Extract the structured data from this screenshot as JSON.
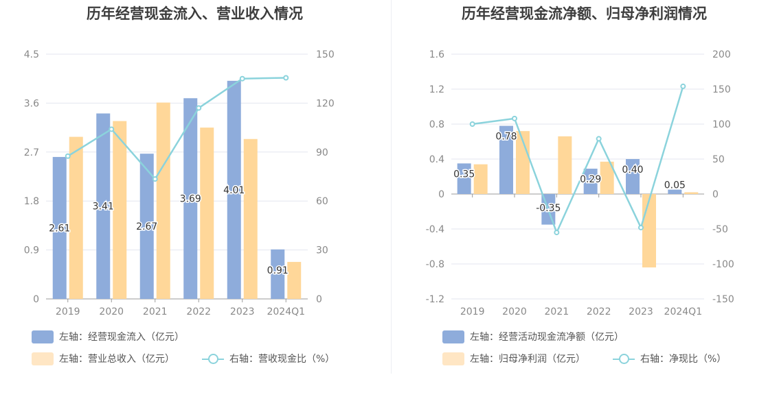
{
  "charts": [
    {
      "title": "历年经营现金流入、营业收入情况",
      "legend": [
        {
          "label": "左轴：经营现金流入（亿元）",
          "color": "#8eacdb"
        },
        {
          "label": "左轴：营业总收入（亿元）",
          "color": "#ffe6c4"
        },
        {
          "label": "右轴：营收现金比（%）",
          "color": "#8bd3dc"
        }
      ]
    },
    {
      "title": "历年经营现金流净额、归母净利润情况",
      "legend": [
        {
          "label": "左轴：经营活动现金流净额（亿元）",
          "color": "#8eacdb"
        },
        {
          "label": "左轴：归母净利润（亿元）",
          "color": "#ffe6c4"
        },
        {
          "label": "右轴：净现比（%）",
          "color": "#8bd3dc"
        }
      ]
    }
  ],
  "chart_data": [
    {
      "type": "bar",
      "categories": [
        "2019",
        "2020",
        "2021",
        "2022",
        "2023",
        "2024Q1"
      ],
      "left_axis": {
        "ticks": [
          "0",
          "0.9",
          "1.8",
          "2.7",
          "3.6",
          "4.5"
        ],
        "min": 0,
        "max": 4.5
      },
      "right_axis": {
        "ticks": [
          "0",
          "30",
          "60",
          "90",
          "120",
          "150"
        ],
        "min": 0,
        "max": 150
      },
      "series": [
        {
          "name": "左轴：经营现金流入（亿元）",
          "axis": "left",
          "kind": "bar",
          "values": [
            2.61,
            3.41,
            2.67,
            3.69,
            4.01,
            0.91
          ],
          "labels": [
            "2.61",
            "3.41",
            "2.67",
            "3.69",
            "4.01",
            "0.91"
          ],
          "color": "#8eacdb"
        },
        {
          "name": "左轴：营业总收入（亿元）",
          "axis": "left",
          "kind": "bar",
          "values": [
            2.98,
            3.27,
            3.61,
            3.15,
            2.94,
            0.68
          ],
          "color": "#ffd799"
        },
        {
          "name": "右轴：营收现金比（%）",
          "axis": "right",
          "kind": "line",
          "values": [
            87.5,
            104,
            73.5,
            117,
            135,
            135.5
          ],
          "color": "#8bd3dc"
        }
      ],
      "grid": true
    },
    {
      "type": "bar",
      "categories": [
        "2019",
        "2020",
        "2021",
        "2022",
        "2023",
        "2024Q1"
      ],
      "left_axis": {
        "ticks": [
          "-1.2",
          "-0.8",
          "-0.4",
          "0",
          "0.4",
          "0.8",
          "1.2",
          "1.6"
        ],
        "min": -1.2,
        "max": 1.6
      },
      "right_axis": {
        "ticks": [
          "-150",
          "-100",
          "-50",
          "0",
          "50",
          "100",
          "150",
          "200"
        ],
        "min": -150,
        "max": 200
      },
      "series": [
        {
          "name": "左轴：经营活动现金流净额（亿元）",
          "axis": "left",
          "kind": "bar",
          "values": [
            0.35,
            0.78,
            -0.35,
            0.29,
            0.4,
            0.05
          ],
          "labels": [
            "0.35",
            "0.78",
            "-0.35",
            "0.29",
            "0.40",
            "0.05"
          ],
          "color": "#8eacdb"
        },
        {
          "name": "左轴：归母净利润（亿元）",
          "axis": "left",
          "kind": "bar",
          "values": [
            0.34,
            0.72,
            0.66,
            0.37,
            -0.84,
            0.02
          ],
          "color": "#ffd799"
        },
        {
          "name": "右轴：净现比（%）",
          "axis": "right",
          "kind": "line",
          "values": [
            100,
            108,
            -55,
            79,
            -48,
            154
          ],
          "color": "#8bd3dc"
        }
      ],
      "grid": true
    }
  ]
}
